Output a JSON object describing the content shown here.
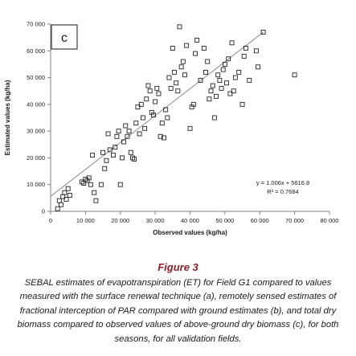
{
  "chart_data": {
    "type": "scatter",
    "panel_label": "c",
    "xlabel": "Observed values (kg/ha)",
    "ylabel": "Estimated values (kg/ha)",
    "xlim": [
      0,
      80000
    ],
    "ylim": [
      0,
      70000
    ],
    "x_ticks": [
      0,
      10000,
      20000,
      30000,
      40000,
      50000,
      60000,
      70000,
      80000
    ],
    "y_ticks": [
      0,
      10000,
      20000,
      30000,
      40000,
      50000,
      60000,
      70000
    ],
    "x_tick_labels": [
      "0",
      "10 000",
      "20 000",
      "30 000",
      "40 000",
      "50 000",
      "60 000",
      "70 000",
      "80 000"
    ],
    "y_tick_labels": [
      "0",
      "10 000",
      "20 000",
      "30 000",
      "40 000",
      "50 000",
      "60 000",
      "70 000"
    ],
    "grid": false,
    "marker": "open-square",
    "trendline": {
      "slope": 1.006,
      "intercept": 5616.8,
      "x_range": [
        0,
        61000
      ]
    },
    "equation_label": "y = 1.006x + 5616.8",
    "r2_label": "R² = 0.7684",
    "points": [
      {
        "x": 2000,
        "y": 1000
      },
      {
        "x": 2500,
        "y": 4000
      },
      {
        "x": 3000,
        "y": 2500
      },
      {
        "x": 3500,
        "y": 5500
      },
      {
        "x": 4000,
        "y": 7000
      },
      {
        "x": 4500,
        "y": 4500
      },
      {
        "x": 5000,
        "y": 8500
      },
      {
        "x": 5500,
        "y": 6000
      },
      {
        "x": 9000,
        "y": 11000
      },
      {
        "x": 9500,
        "y": 10500
      },
      {
        "x": 10000,
        "y": 12000
      },
      {
        "x": 10500,
        "y": 11500
      },
      {
        "x": 11000,
        "y": 12500
      },
      {
        "x": 11500,
        "y": 10000
      },
      {
        "x": 12000,
        "y": 21000
      },
      {
        "x": 12500,
        "y": 7000
      },
      {
        "x": 13000,
        "y": 4000
      },
      {
        "x": 14500,
        "y": 10000
      },
      {
        "x": 15000,
        "y": 22000
      },
      {
        "x": 15500,
        "y": 16000
      },
      {
        "x": 16000,
        "y": 19000
      },
      {
        "x": 16500,
        "y": 29000
      },
      {
        "x": 17000,
        "y": 23000
      },
      {
        "x": 18000,
        "y": 21000
      },
      {
        "x": 18500,
        "y": 24000
      },
      {
        "x": 19000,
        "y": 28000
      },
      {
        "x": 19500,
        "y": 30000
      },
      {
        "x": 20000,
        "y": 10000
      },
      {
        "x": 20500,
        "y": 20000
      },
      {
        "x": 21000,
        "y": 26000
      },
      {
        "x": 21500,
        "y": 32000
      },
      {
        "x": 22000,
        "y": 28000
      },
      {
        "x": 22500,
        "y": 30000
      },
      {
        "x": 23000,
        "y": 22000
      },
      {
        "x": 23500,
        "y": 20000
      },
      {
        "x": 24000,
        "y": 19500
      },
      {
        "x": 24500,
        "y": 33000
      },
      {
        "x": 25000,
        "y": 39000
      },
      {
        "x": 25500,
        "y": 29000
      },
      {
        "x": 26000,
        "y": 40000
      },
      {
        "x": 26500,
        "y": 35000
      },
      {
        "x": 27000,
        "y": 31000
      },
      {
        "x": 27500,
        "y": 42000
      },
      {
        "x": 28000,
        "y": 47000
      },
      {
        "x": 28500,
        "y": 45000
      },
      {
        "x": 29000,
        "y": 37000
      },
      {
        "x": 29500,
        "y": 36000
      },
      {
        "x": 30000,
        "y": 41000
      },
      {
        "x": 30500,
        "y": 46000
      },
      {
        "x": 31000,
        "y": 44000
      },
      {
        "x": 31500,
        "y": 28000
      },
      {
        "x": 32000,
        "y": 33000
      },
      {
        "x": 32500,
        "y": 27500
      },
      {
        "x": 33000,
        "y": 38000
      },
      {
        "x": 33500,
        "y": 35000
      },
      {
        "x": 34000,
        "y": 50000
      },
      {
        "x": 34500,
        "y": 46000
      },
      {
        "x": 35000,
        "y": 61000
      },
      {
        "x": 35500,
        "y": 52000
      },
      {
        "x": 36000,
        "y": 48000
      },
      {
        "x": 36500,
        "y": 45000
      },
      {
        "x": 37000,
        "y": 69000
      },
      {
        "x": 37500,
        "y": 54000
      },
      {
        "x": 38000,
        "y": 56000
      },
      {
        "x": 38500,
        "y": 51000
      },
      {
        "x": 39000,
        "y": 62000
      },
      {
        "x": 40000,
        "y": 31000
      },
      {
        "x": 40500,
        "y": 39000
      },
      {
        "x": 41000,
        "y": 40000
      },
      {
        "x": 41500,
        "y": 59000
      },
      {
        "x": 42000,
        "y": 64000
      },
      {
        "x": 43000,
        "y": 49000
      },
      {
        "x": 44000,
        "y": 61000
      },
      {
        "x": 44500,
        "y": 52000
      },
      {
        "x": 45000,
        "y": 56000
      },
      {
        "x": 45500,
        "y": 42000
      },
      {
        "x": 46000,
        "y": 45000
      },
      {
        "x": 46500,
        "y": 47000
      },
      {
        "x": 47000,
        "y": 35000
      },
      {
        "x": 47500,
        "y": 43000
      },
      {
        "x": 48000,
        "y": 51000
      },
      {
        "x": 48500,
        "y": 49000
      },
      {
        "x": 49000,
        "y": 46000
      },
      {
        "x": 49500,
        "y": 53000
      },
      {
        "x": 50000,
        "y": 55000
      },
      {
        "x": 50500,
        "y": 48000
      },
      {
        "x": 51000,
        "y": 57000
      },
      {
        "x": 51500,
        "y": 44000
      },
      {
        "x": 52000,
        "y": 63000
      },
      {
        "x": 52500,
        "y": 45000
      },
      {
        "x": 53000,
        "y": 50000
      },
      {
        "x": 54000,
        "y": 52000
      },
      {
        "x": 55000,
        "y": 40000
      },
      {
        "x": 55500,
        "y": 58000
      },
      {
        "x": 56000,
        "y": 61000
      },
      {
        "x": 57000,
        "y": 49000
      },
      {
        "x": 59000,
        "y": 60000
      },
      {
        "x": 59500,
        "y": 54000
      },
      {
        "x": 61000,
        "y": 67000
      },
      {
        "x": 70000,
        "y": 51000
      }
    ]
  },
  "caption": {
    "title": "Figure 3",
    "text": "SEBAL estimates of evapotranspiration (ET) for Field G1 compared to values measured with the surface renewal technique (a), remotely sensed estimates of fractional interception of PAR compared with ground estimates (b), and total dry biomass compared to observed values of above-ground dry biomass (c), for both seasons, for all validation fields."
  }
}
